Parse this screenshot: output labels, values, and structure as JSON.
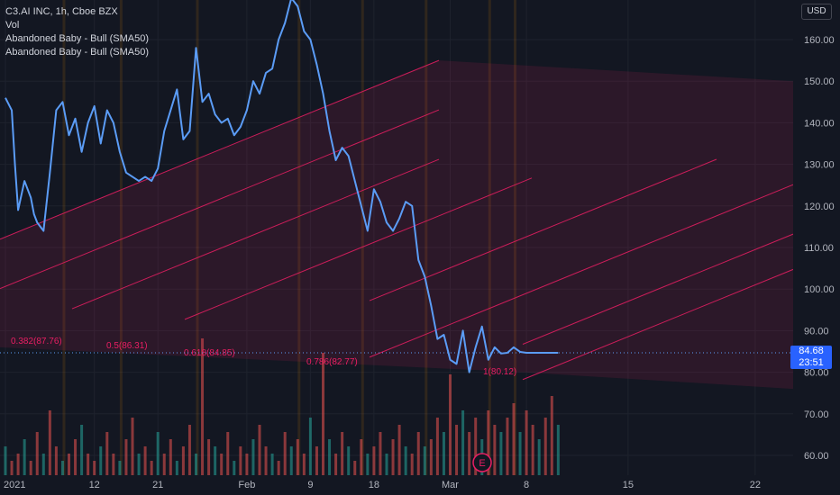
{
  "legend": {
    "symbol": "C3.AI INC, 1h, Cboe BZX",
    "vol": "Vol",
    "indicator_1": "Abandoned Baby - Bull (SMA50)",
    "indicator_2": "Abandoned Baby - Bull (SMA50)"
  },
  "currency": "USD",
  "last_price": {
    "value": "84.68",
    "countdown": "23:51"
  },
  "earnings_marker": "E",
  "colors": {
    "line": "#5b9cf6",
    "fib": "#e91e63",
    "background": "#131722",
    "vol_up": "#26a69a",
    "vol_down": "#ef5350",
    "orange": "#ff9800"
  },
  "chart_data": {
    "type": "line",
    "title": "C3.AI INC, 1h, Cboe BZX",
    "ylim": [
      55,
      170
    ],
    "y_ticks": [
      60,
      70,
      80,
      90,
      100,
      110,
      120,
      130,
      140,
      150,
      160
    ],
    "y_tick_labels": [
      "60.00",
      "70.00",
      "80.00",
      "90.00",
      "100.00",
      "110.00",
      "120.00",
      "130.00",
      "140.00",
      "150.00",
      "160.00"
    ],
    "x_ticks": [
      "2021",
      "12",
      "21",
      "Feb",
      "9",
      "18",
      "Mar",
      "8",
      "15",
      "22"
    ],
    "x_tick_index": [
      0,
      14,
      24,
      38,
      48,
      58,
      70,
      82,
      98,
      118
    ],
    "x_range": [
      0,
      124
    ],
    "series": [
      {
        "x": [
          0,
          1,
          1.5,
          2,
          3,
          4,
          4.5,
          5,
          6,
          7,
          8,
          9,
          10,
          11,
          12,
          13,
          14,
          15,
          16,
          17,
          18,
          19,
          20,
          21,
          22,
          23,
          24,
          25,
          26,
          27,
          28,
          29,
          30,
          31,
          32,
          33,
          34,
          35,
          36,
          37,
          38,
          39,
          40,
          41,
          42,
          43,
          44,
          45,
          46,
          47,
          48,
          49,
          50,
          51,
          52,
          53,
          54,
          55,
          56,
          57,
          58,
          59,
          60,
          61,
          62,
          63,
          64,
          65,
          66,
          67,
          68,
          69,
          70,
          71,
          72,
          73,
          74,
          75,
          76,
          77,
          78,
          79,
          80,
          81,
          82,
          83,
          84,
          85,
          86,
          87
        ],
        "y": [
          146,
          143,
          130,
          119,
          126,
          122,
          118,
          116,
          114,
          128,
          143,
          145,
          137,
          141,
          133,
          140,
          144,
          135,
          143,
          140,
          133,
          128,
          127,
          126,
          127,
          126,
          129,
          138,
          143,
          148,
          136,
          138,
          158,
          145,
          147,
          142,
          140,
          141,
          137,
          139,
          143,
          150,
          147,
          152,
          153,
          160,
          164,
          170,
          168,
          162,
          160,
          154,
          147,
          138,
          131,
          134,
          132,
          126,
          120,
          114,
          124,
          121,
          116,
          114,
          117,
          121,
          120,
          107,
          103,
          96,
          88,
          89,
          83,
          82,
          90,
          80,
          86,
          91,
          83,
          86,
          84.5,
          84.68,
          86,
          84.9,
          84.68,
          84.68,
          84.68,
          84.68,
          84.68,
          84.68
        ]
      }
    ],
    "fib_levels": [
      {
        "level": "0.382",
        "value": "87.76",
        "label": "0.382(87.76)"
      },
      {
        "level": "0.5",
        "value": "86.31",
        "label": "0.5(86.31)"
      },
      {
        "level": "0.618",
        "value": "84.85",
        "label": "0.618(84.85)"
      },
      {
        "level": "0.786",
        "value": "82.77",
        "label": "0.786(82.77)"
      },
      {
        "level": "1",
        "value": "80.12",
        "label": "1(80.12)"
      }
    ],
    "volume": [
      4,
      2,
      3,
      5,
      2,
      6,
      3,
      9,
      4,
      2,
      3,
      5,
      7,
      3,
      2,
      4,
      6,
      3,
      2,
      5,
      8,
      3,
      4,
      2,
      6,
      3,
      5,
      2,
      4,
      7,
      3,
      19,
      5,
      4,
      3,
      6,
      2,
      4,
      3,
      5,
      7,
      4,
      3,
      2,
      6,
      4,
      5,
      3,
      8,
      4,
      17,
      5,
      3,
      6,
      4,
      2,
      5,
      3,
      4,
      6,
      3,
      5,
      7,
      4,
      3,
      6,
      4,
      5,
      8,
      6,
      14,
      7,
      9,
      6,
      8,
      5,
      9,
      7,
      6,
      8,
      10,
      6,
      9,
      7,
      5,
      8,
      11,
      7
    ]
  }
}
